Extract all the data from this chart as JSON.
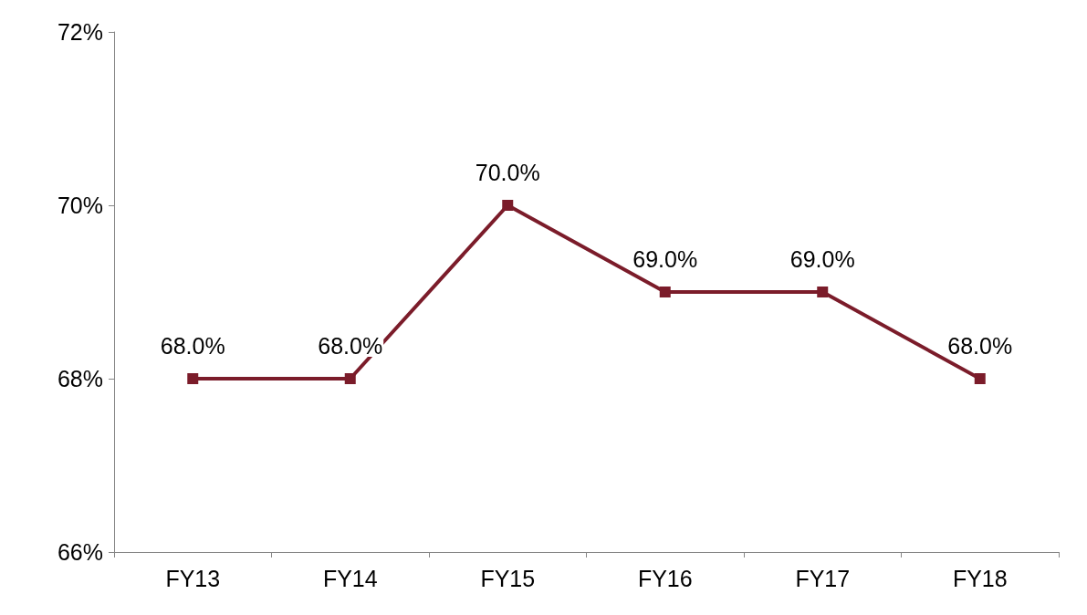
{
  "chart_data": {
    "type": "line",
    "categories": [
      "FY13",
      "FY14",
      "FY15",
      "FY16",
      "FY17",
      "FY18"
    ],
    "series": [
      {
        "color": "#7b1c2a",
        "values": [
          68,
          68,
          70,
          69,
          69,
          68
        ],
        "value_labels": [
          "68.0%",
          "68.0%",
          "70.0%",
          "69.0%",
          "69.0%",
          "68.0%"
        ]
      }
    ],
    "ylim": [
      66,
      72
    ],
    "yticks": [
      {
        "value": 66,
        "label": "66%"
      },
      {
        "value": 68,
        "label": "68%"
      },
      {
        "value": 70,
        "label": "70%"
      },
      {
        "value": 72,
        "label": "72%"
      }
    ],
    "marker": "square",
    "line_style": "solid",
    "grid": false
  }
}
